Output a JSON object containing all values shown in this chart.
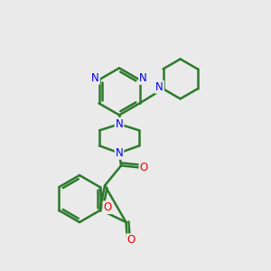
{
  "background_color": "#eaeaea",
  "bond_color": "#2d7a2d",
  "bond_width": 1.8,
  "nitrogen_color": "#0000ee",
  "oxygen_color": "#ee0000",
  "figsize": [
    3.0,
    3.0
  ],
  "dpi": 100,
  "xlim": [
    0,
    300
  ],
  "ylim": [
    0,
    300
  ]
}
